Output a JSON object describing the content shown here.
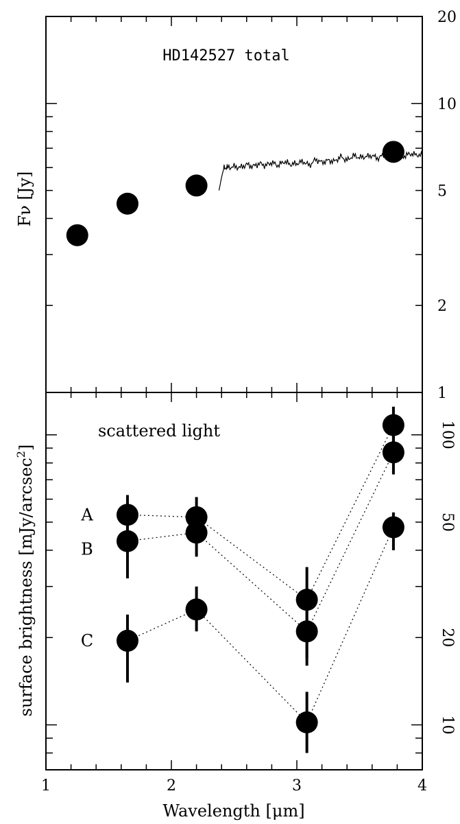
{
  "chart_data": [
    {
      "type": "scatter",
      "title": "HD142527 total",
      "xlabel": "Wavelength [μm]",
      "ylabel": "Fν [Jy]",
      "xlim": [
        1,
        4
      ],
      "ylim": [
        1,
        20
      ],
      "yscale": "log",
      "y_tick_labels": [
        "20",
        "10",
        "5",
        "2",
        "1"
      ],
      "y_tick_values": [
        20,
        10,
        5,
        2,
        1
      ],
      "points": [
        {
          "x": 1.25,
          "y": 3.5
        },
        {
          "x": 1.65,
          "y": 4.5
        },
        {
          "x": 2.2,
          "y": 5.2
        },
        {
          "x": 3.77,
          "y": 6.8
        }
      ],
      "spectrum": {
        "x": [
          2.38,
          2.4,
          2.42,
          2.45,
          2.5,
          2.55,
          2.6,
          2.65,
          2.7,
          2.75,
          2.8,
          2.85,
          2.9,
          2.95,
          3.0,
          3.05,
          3.1,
          3.15,
          3.2,
          3.25,
          3.3,
          3.35,
          3.4,
          3.45,
          3.5,
          3.55,
          3.6,
          3.65,
          3.7,
          3.75,
          3.8,
          3.85,
          3.9,
          3.95,
          4.0
        ],
        "y": [
          5.0,
          5.55,
          6.0,
          6.0,
          6.05,
          6.0,
          6.15,
          6.05,
          6.2,
          6.1,
          6.25,
          6.1,
          6.3,
          6.15,
          6.2,
          6.3,
          6.1,
          6.4,
          6.25,
          6.35,
          6.3,
          6.55,
          6.35,
          6.6,
          6.5,
          6.55,
          6.6,
          6.45,
          6.7,
          6.6,
          6.7,
          6.55,
          6.7,
          6.65,
          6.6
        ]
      }
    },
    {
      "type": "scatter",
      "title": "scattered light",
      "xlabel": "Wavelength [μm]",
      "ylabel": "surface brightness [mJy/arcsec²]",
      "xlim": [
        1,
        4
      ],
      "ylim": [
        7,
        140
      ],
      "yscale": "log",
      "x_tick_labels": [
        "1",
        "2",
        "3",
        "4"
      ],
      "y_tick_labels": [
        "100",
        "50",
        "20",
        "10"
      ],
      "y_tick_values": [
        100,
        50,
        20,
        10
      ],
      "series": [
        {
          "name": "A",
          "x": [
            1.65,
            2.2,
            3.08,
            3.77
          ],
          "y": [
            53,
            52,
            27,
            108
          ],
          "yerr_low": [
            46,
            44,
            17,
            90
          ],
          "yerr_high": [
            62,
            61,
            35,
            125
          ]
        },
        {
          "name": "B",
          "x": [
            1.65,
            2.2,
            3.08,
            3.77
          ],
          "y": [
            43,
            46,
            21,
            87
          ],
          "yerr_low": [
            32,
            38,
            16,
            73
          ],
          "yerr_high": [
            53,
            55,
            26,
            100
          ]
        },
        {
          "name": "C",
          "x": [
            1.65,
            2.2,
            3.08,
            3.77
          ],
          "y": [
            19.5,
            25,
            10.2,
            48
          ],
          "yerr_low": [
            14,
            21,
            8,
            40
          ],
          "yerr_high": [
            24,
            30,
            13,
            54
          ]
        }
      ]
    }
  ]
}
